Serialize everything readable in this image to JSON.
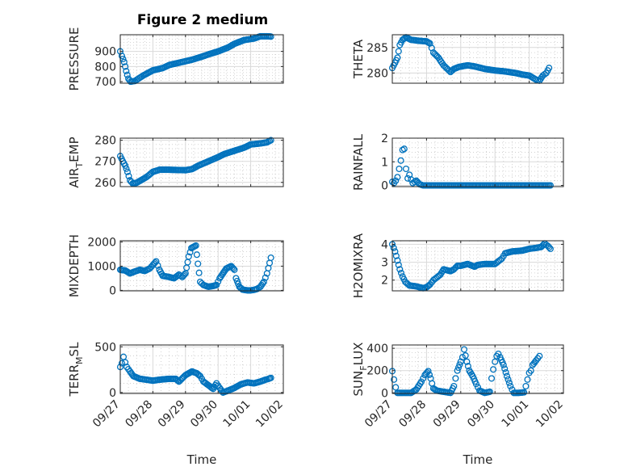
{
  "figure": {
    "title": "Figure 2 medium",
    "marker_color": "#0072BD",
    "x_common": {
      "xlabel": "Time",
      "xlim": [
        0,
        5
      ],
      "tick_values": [
        0,
        1,
        2,
        3,
        4,
        5
      ],
      "tick_labels": [
        "09/27",
        "09/28",
        "09/29",
        "09/30",
        "10/01",
        "10/02"
      ]
    }
  },
  "chart_data": [
    {
      "type": "scatter",
      "name": "pressure",
      "title": "Figure 2 medium",
      "ylabel": "PRESSURE",
      "ylim": [
        690,
        1010
      ],
      "yticks": [
        700,
        800,
        900
      ],
      "keypoints": [
        [
          0.0,
          900
        ],
        [
          0.05,
          870
        ],
        [
          0.12,
          830
        ],
        [
          0.18,
          770
        ],
        [
          0.25,
          720
        ],
        [
          0.32,
          700
        ],
        [
          0.45,
          705
        ],
        [
          0.7,
          740
        ],
        [
          1.0,
          775
        ],
        [
          1.3,
          790
        ],
        [
          1.5,
          810
        ],
        [
          1.8,
          825
        ],
        [
          2.0,
          835
        ],
        [
          2.2,
          845
        ],
        [
          2.5,
          865
        ],
        [
          2.7,
          880
        ],
        [
          3.0,
          900
        ],
        [
          3.3,
          925
        ],
        [
          3.5,
          950
        ],
        [
          3.8,
          975
        ],
        [
          4.1,
          985
        ],
        [
          4.3,
          1000
        ],
        [
          4.5,
          1000
        ],
        [
          4.62,
          998
        ]
      ]
    },
    {
      "type": "scatter",
      "name": "theta",
      "ylabel": "THETA",
      "ylim": [
        278,
        287.5
      ],
      "yticks": [
        280,
        285
      ],
      "keypoints": [
        [
          0.0,
          281
        ],
        [
          0.08,
          282
        ],
        [
          0.15,
          283
        ],
        [
          0.22,
          285.5
        ],
        [
          0.3,
          286.5
        ],
        [
          0.4,
          287
        ],
        [
          0.55,
          286.5
        ],
        [
          0.8,
          286.3
        ],
        [
          1.0,
          286.2
        ],
        [
          1.1,
          285.8
        ],
        [
          1.2,
          284
        ],
        [
          1.35,
          283
        ],
        [
          1.5,
          281.5
        ],
        [
          1.7,
          280.2
        ],
        [
          1.8,
          280.8
        ],
        [
          1.95,
          281.2
        ],
        [
          2.2,
          281.5
        ],
        [
          2.4,
          281.3
        ],
        [
          2.7,
          280.8
        ],
        [
          3.0,
          280.5
        ],
        [
          3.3,
          280.3
        ],
        [
          3.6,
          280
        ],
        [
          3.8,
          279.7
        ],
        [
          4.0,
          279.5
        ],
        [
          4.2,
          278.7
        ],
        [
          4.3,
          278.5
        ],
        [
          4.4,
          279.5
        ],
        [
          4.5,
          280
        ],
        [
          4.58,
          281
        ]
      ]
    },
    {
      "type": "scatter",
      "name": "air_temp",
      "ylabel": "AIR",
      "ylabel_sub": "T",
      "ylabel_tail": "EMP",
      "ylim": [
        258,
        281
      ],
      "yticks": [
        260,
        270,
        280
      ],
      "keypoints": [
        [
          0.0,
          272.5
        ],
        [
          0.08,
          270
        ],
        [
          0.15,
          268
        ],
        [
          0.22,
          265
        ],
        [
          0.3,
          261
        ],
        [
          0.38,
          259.5
        ],
        [
          0.5,
          259.8
        ],
        [
          0.8,
          262.5
        ],
        [
          1.0,
          265
        ],
        [
          1.2,
          266
        ],
        [
          1.5,
          266
        ],
        [
          2.0,
          265.8
        ],
        [
          2.2,
          266.3
        ],
        [
          2.4,
          268
        ],
        [
          2.7,
          270
        ],
        [
          3.0,
          272
        ],
        [
          3.2,
          273.5
        ],
        [
          3.5,
          275
        ],
        [
          3.8,
          276.5
        ],
        [
          4.0,
          278
        ],
        [
          4.3,
          278.5
        ],
        [
          4.5,
          279
        ],
        [
          4.62,
          280
        ]
      ]
    },
    {
      "type": "scatter",
      "name": "rainfall",
      "ylabel": "RAINFALL",
      "ylim": [
        -0.05,
        2
      ],
      "yticks": [
        0,
        1,
        2
      ],
      "keypoints": [
        [
          0.0,
          0.15
        ],
        [
          0.05,
          0.1
        ],
        [
          0.1,
          0.2
        ],
        [
          0.15,
          0.35
        ],
        [
          0.2,
          0.7
        ],
        [
          0.25,
          1.05
        ],
        [
          0.3,
          1.5
        ],
        [
          0.35,
          1.55
        ],
        [
          0.4,
          0.7
        ],
        [
          0.45,
          0.3
        ],
        [
          0.5,
          0.45
        ],
        [
          0.55,
          0.25
        ],
        [
          0.6,
          0.1
        ],
        [
          0.7,
          0.2
        ],
        [
          0.8,
          0.05
        ],
        [
          0.9,
          0.0
        ],
        [
          4.62,
          0.0
        ]
      ]
    },
    {
      "type": "scatter",
      "name": "mixdepth",
      "ylabel": "MIXDEPTH",
      "ylim": [
        -20,
        2050
      ],
      "yticks": [
        0,
        1000,
        2000
      ],
      "keypoints": [
        [
          0.0,
          850
        ],
        [
          0.15,
          820
        ],
        [
          0.3,
          700
        ],
        [
          0.45,
          780
        ],
        [
          0.6,
          850
        ],
        [
          0.75,
          800
        ],
        [
          0.9,
          900
        ],
        [
          1.0,
          1050
        ],
        [
          1.1,
          1200
        ],
        [
          1.2,
          850
        ],
        [
          1.3,
          600
        ],
        [
          1.5,
          550
        ],
        [
          1.65,
          500
        ],
        [
          1.8,
          650
        ],
        [
          1.9,
          550
        ],
        [
          2.0,
          700
        ],
        [
          2.1,
          1400
        ],
        [
          2.18,
          1750
        ],
        [
          2.25,
          1800
        ],
        [
          2.32,
          1850
        ],
        [
          2.38,
          1100
        ],
        [
          2.45,
          350
        ],
        [
          2.55,
          220
        ],
        [
          2.7,
          150
        ],
        [
          2.85,
          180
        ],
        [
          2.95,
          220
        ],
        [
          3.05,
          500
        ],
        [
          3.15,
          700
        ],
        [
          3.25,
          900
        ],
        [
          3.4,
          1000
        ],
        [
          3.5,
          850
        ],
        [
          3.55,
          500
        ],
        [
          3.65,
          150
        ],
        [
          3.75,
          30
        ],
        [
          3.9,
          0
        ],
        [
          4.0,
          0
        ],
        [
          4.1,
          20
        ],
        [
          4.2,
          60
        ],
        [
          4.3,
          150
        ],
        [
          4.4,
          350
        ],
        [
          4.5,
          700
        ],
        [
          4.62,
          1350
        ]
      ]
    },
    {
      "type": "scatter",
      "name": "h2omixra",
      "ylabel": "H2OMIXRA",
      "ylim": [
        1.4,
        4.2
      ],
      "yticks": [
        2,
        3,
        4
      ],
      "keypoints": [
        [
          0.0,
          4.0
        ],
        [
          0.08,
          3.6
        ],
        [
          0.15,
          3.1
        ],
        [
          0.22,
          2.6
        ],
        [
          0.3,
          2.2
        ],
        [
          0.38,
          1.9
        ],
        [
          0.5,
          1.7
        ],
        [
          0.7,
          1.65
        ],
        [
          0.9,
          1.55
        ],
        [
          1.0,
          1.6
        ],
        [
          1.1,
          1.75
        ],
        [
          1.2,
          2.0
        ],
        [
          1.4,
          2.3
        ],
        [
          1.5,
          2.6
        ],
        [
          1.7,
          2.5
        ],
        [
          1.8,
          2.6
        ],
        [
          1.9,
          2.8
        ],
        [
          2.0,
          2.8
        ],
        [
          2.2,
          2.9
        ],
        [
          2.4,
          2.75
        ],
        [
          2.5,
          2.85
        ],
        [
          2.7,
          2.9
        ],
        [
          3.0,
          2.9
        ],
        [
          3.2,
          3.2
        ],
        [
          3.3,
          3.5
        ],
        [
          3.5,
          3.6
        ],
        [
          3.8,
          3.65
        ],
        [
          4.0,
          3.75
        ],
        [
          4.2,
          3.8
        ],
        [
          4.35,
          3.85
        ],
        [
          4.45,
          4.05
        ],
        [
          4.55,
          3.9
        ],
        [
          4.62,
          3.75
        ]
      ]
    },
    {
      "type": "scatter",
      "name": "terr_msl",
      "ylabel": "TERR",
      "ylabel_sub": "M",
      "ylabel_tail": "SL",
      "ylim": [
        -10,
        520
      ],
      "yticks": [
        0,
        500
      ],
      "keypoints": [
        [
          0.0,
          280
        ],
        [
          0.05,
          320
        ],
        [
          0.1,
          390
        ],
        [
          0.15,
          330
        ],
        [
          0.2,
          280
        ],
        [
          0.3,
          230
        ],
        [
          0.4,
          180
        ],
        [
          0.6,
          150
        ],
        [
          0.8,
          140
        ],
        [
          1.0,
          130
        ],
        [
          1.2,
          140
        ],
        [
          1.5,
          150
        ],
        [
          1.7,
          150
        ],
        [
          1.8,
          120
        ],
        [
          2.0,
          190
        ],
        [
          2.1,
          210
        ],
        [
          2.2,
          230
        ],
        [
          2.35,
          210
        ],
        [
          2.45,
          180
        ],
        [
          2.55,
          120
        ],
        [
          2.7,
          80
        ],
        [
          2.85,
          40
        ],
        [
          2.95,
          100
        ],
        [
          3.05,
          50
        ],
        [
          3.15,
          0
        ],
        [
          3.3,
          20
        ],
        [
          3.5,
          50
        ],
        [
          3.7,
          90
        ],
        [
          3.9,
          110
        ],
        [
          4.1,
          100
        ],
        [
          4.3,
          120
        ],
        [
          4.45,
          140
        ],
        [
          4.55,
          150
        ],
        [
          4.62,
          160
        ]
      ]
    },
    {
      "type": "scatter",
      "name": "sun_flux",
      "ylabel": "SUN",
      "ylabel_sub": "F",
      "ylabel_tail": "LUX",
      "ylim": [
        -5,
        430
      ],
      "yticks": [
        0,
        200,
        400
      ],
      "keypoints": [
        [
          0.0,
          195
        ],
        [
          0.05,
          120
        ],
        [
          0.1,
          50
        ],
        [
          0.15,
          0
        ],
        [
          0.3,
          0
        ],
        [
          0.55,
          0
        ],
        [
          0.7,
          30
        ],
        [
          0.85,
          100
        ],
        [
          0.95,
          160
        ],
        [
          1.05,
          195
        ],
        [
          1.12,
          130
        ],
        [
          1.2,
          40
        ],
        [
          1.3,
          20
        ],
        [
          1.5,
          10
        ],
        [
          1.7,
          0
        ],
        [
          1.8,
          60
        ],
        [
          1.9,
          200
        ],
        [
          2.0,
          280
        ],
        [
          2.05,
          320
        ],
        [
          2.1,
          390
        ],
        [
          2.18,
          280
        ],
        [
          2.25,
          200
        ],
        [
          2.35,
          150
        ],
        [
          2.45,
          80
        ],
        [
          2.55,
          20
        ],
        [
          2.7,
          0
        ],
        [
          2.85,
          10
        ],
        [
          2.9,
          130
        ],
        [
          2.95,
          210
        ],
        [
          3.0,
          280
        ],
        [
          3.05,
          330
        ],
        [
          3.1,
          350
        ],
        [
          3.15,
          320
        ],
        [
          3.25,
          250
        ],
        [
          3.35,
          150
        ],
        [
          3.45,
          60
        ],
        [
          3.55,
          0
        ],
        [
          3.7,
          0
        ],
        [
          3.85,
          5
        ],
        [
          3.9,
          60
        ],
        [
          3.95,
          120
        ],
        [
          4.0,
          180
        ],
        [
          4.05,
          200
        ],
        [
          4.1,
          250
        ],
        [
          4.2,
          290
        ],
        [
          4.3,
          330
        ]
      ]
    }
  ]
}
